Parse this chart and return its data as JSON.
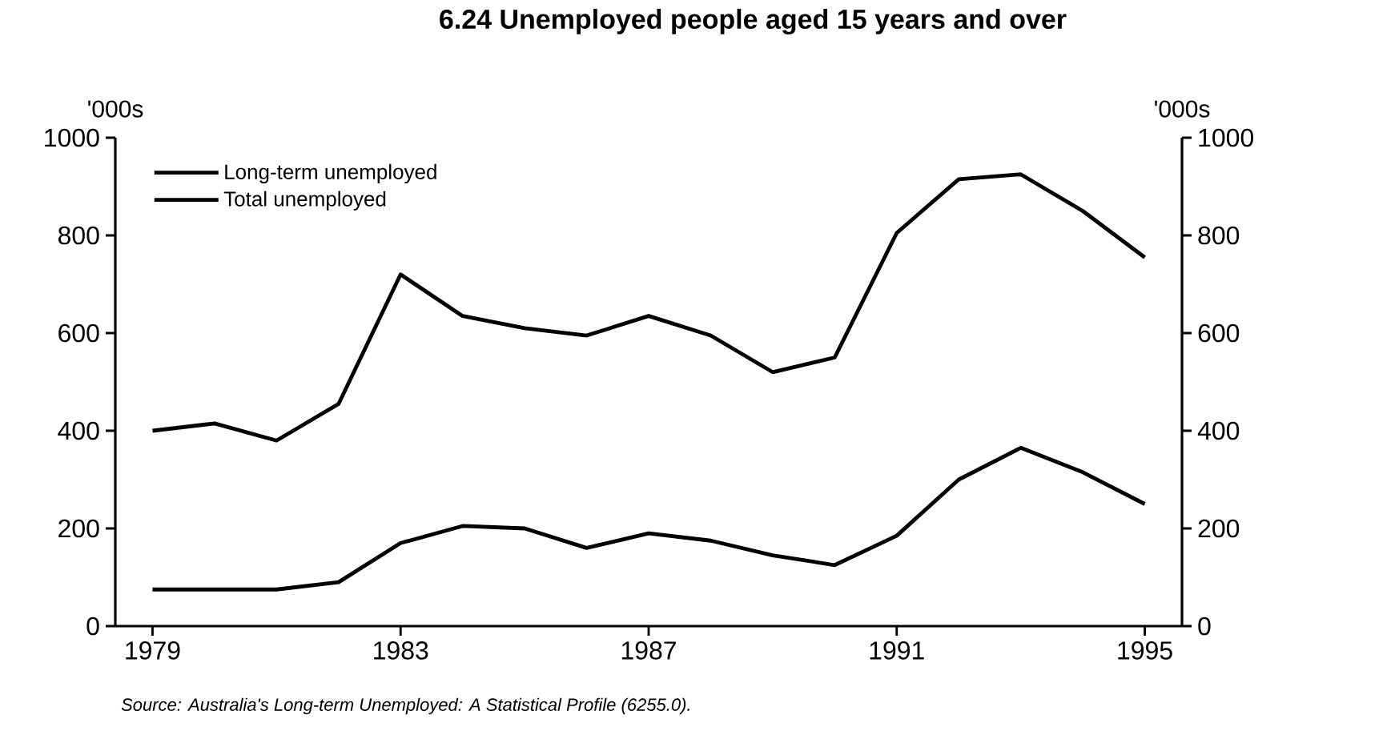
{
  "chart_data": {
    "type": "line",
    "title": "6.24 Unemployed people aged 15 years and over",
    "ylabel": "'000s",
    "y2label": "'000s",
    "x": [
      1979,
      1980,
      1981,
      1982,
      1983,
      1984,
      1985,
      1986,
      1987,
      1988,
      1989,
      1990,
      1991,
      1992,
      1993,
      1994,
      1995
    ],
    "series": [
      {
        "name": "Long-term unemployed",
        "color": "#000000",
        "values": [
          75,
          75,
          75,
          90,
          170,
          205,
          200,
          160,
          190,
          175,
          145,
          125,
          185,
          300,
          365,
          315,
          250
        ]
      },
      {
        "name": "Total unemployed",
        "color": "#000000",
        "values": [
          400,
          415,
          380,
          455,
          720,
          635,
          610,
          595,
          635,
          595,
          520,
          550,
          805,
          915,
          925,
          850,
          755
        ]
      }
    ],
    "xlim": [
      1978.4,
      1995.6
    ],
    "xticks": [
      1979,
      1983,
      1987,
      1991,
      1995
    ],
    "ylim": [
      0,
      1000
    ],
    "yticks": [
      0,
      200,
      400,
      600,
      800,
      1000
    ],
    "y2lim": [
      0,
      1000
    ],
    "y2ticks": [
      0,
      200,
      400,
      600,
      800,
      1000
    ],
    "legend": "top left",
    "line_style": "solid",
    "annotations": [
      "Source: Australia's Long-term Unemployed: A Statistical Profile (6255.0)."
    ]
  }
}
